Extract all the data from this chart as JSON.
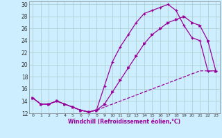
{
  "xlabel": "Windchill (Refroidissement éolien,°C)",
  "bg_color": "#cceeff",
  "line_color": "#990099",
  "grid_color": "#aacccc",
  "xlim": [
    -0.5,
    23.5
  ],
  "ylim": [
    12,
    30.5
  ],
  "yticks": [
    12,
    14,
    16,
    18,
    20,
    22,
    24,
    26,
    28,
    30
  ],
  "xticks": [
    0,
    1,
    2,
    3,
    4,
    5,
    6,
    7,
    8,
    9,
    10,
    11,
    12,
    13,
    14,
    15,
    16,
    17,
    18,
    19,
    20,
    21,
    22,
    23
  ],
  "series1_x": [
    0,
    1,
    2,
    3,
    4,
    5,
    6,
    7,
    8,
    9,
    10,
    11,
    12,
    13,
    14,
    15,
    16,
    17,
    18,
    19,
    20,
    21,
    22,
    23
  ],
  "series1_y": [
    14.5,
    13.5,
    13.5,
    14.0,
    13.5,
    13.0,
    12.5,
    12.2,
    12.5,
    16.5,
    20.5,
    23.0,
    25.0,
    27.0,
    28.5,
    29.0,
    29.5,
    30.0,
    29.0,
    26.5,
    24.5,
    24.0,
    19.0,
    19.0
  ],
  "series2_x": [
    0,
    1,
    2,
    3,
    4,
    5,
    6,
    7,
    8,
    9,
    10,
    11,
    12,
    13,
    14,
    15,
    16,
    17,
    18,
    19,
    20,
    21,
    22,
    23
  ],
  "series2_y": [
    14.5,
    13.5,
    13.5,
    14.0,
    13.5,
    13.0,
    12.5,
    12.2,
    12.5,
    13.5,
    15.5,
    17.5,
    19.5,
    21.5,
    23.5,
    25.0,
    26.0,
    27.0,
    27.5,
    28.0,
    27.0,
    26.5,
    24.0,
    19.0
  ],
  "series3_x": [
    0,
    1,
    2,
    3,
    4,
    5,
    6,
    7,
    8,
    9,
    10,
    11,
    12,
    13,
    14,
    15,
    16,
    17,
    18,
    19,
    20,
    21,
    22,
    23
  ],
  "series3_y": [
    14.5,
    13.5,
    13.5,
    14.0,
    13.5,
    13.0,
    12.5,
    12.2,
    12.5,
    13.0,
    13.5,
    14.0,
    14.5,
    15.0,
    15.5,
    16.0,
    16.5,
    17.0,
    17.5,
    18.0,
    18.5,
    19.0,
    19.0,
    19.0
  ]
}
